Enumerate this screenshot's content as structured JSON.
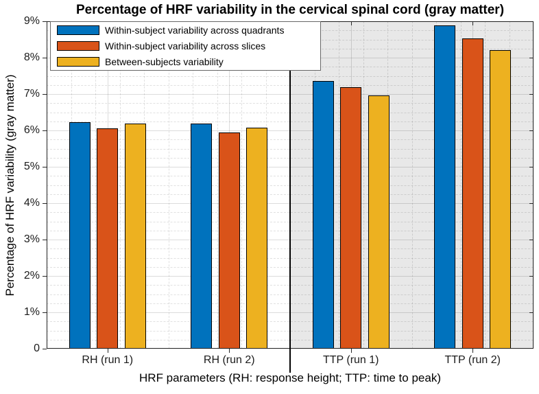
{
  "chart_data": {
    "type": "bar",
    "title": "Percentage of HRF variability in the cervical spinal cord (gray matter)",
    "xlabel": "HRF parameters (RH: response height; TTP: time to peak)",
    "ylabel": "Percentage of HRF variability (gray matter)",
    "categories": [
      "RH (run 1)",
      "RH (run 2)",
      "TTP (run 1)",
      "TTP (run 2)"
    ],
    "series": [
      {
        "name": "Within-subject variability across quadrants",
        "color": "#0072BD",
        "values": [
          6.23,
          6.19,
          7.36,
          8.88
        ]
      },
      {
        "name": "Within-subject variability across slices",
        "color": "#D95319",
        "values": [
          6.06,
          5.95,
          7.19,
          8.52
        ]
      },
      {
        "name": "Between-subjects variability",
        "color": "#EDB120",
        "values": [
          6.18,
          6.08,
          6.97,
          8.2
        ]
      }
    ],
    "ylim": [
      0,
      9
    ],
    "ytick_labels": [
      "0",
      "1%",
      "2%",
      "3%",
      "4%",
      "5%",
      "6%",
      "7%",
      "8%",
      "9%"
    ],
    "grid": true,
    "minor_grid": true,
    "legend_position": "top-left",
    "bar_edge_color": "#000000",
    "section_divider_after_category_index": 2,
    "shaded_section": {
      "from_category": "TTP (run 1)",
      "color": "#E8E8E8"
    }
  }
}
